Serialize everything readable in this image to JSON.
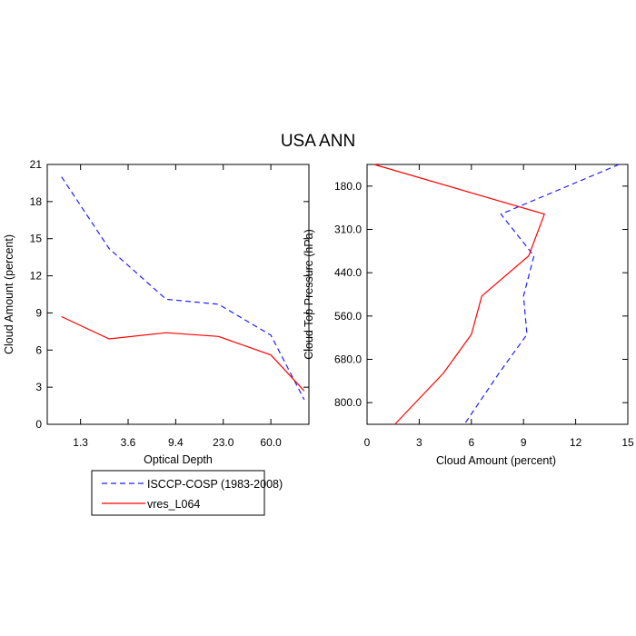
{
  "title": "USA ANN",
  "legend": {
    "entries": [
      {
        "label": "ISCCP-COSP (1983-2008)",
        "color": "#1f1fff",
        "dash": true
      },
      {
        "label": "vres_L064",
        "color": "#ff0000",
        "dash": false
      }
    ]
  },
  "chart_data": [
    {
      "type": "line",
      "xlabel": "Optical Depth",
      "ylabel": "Cloud Amount (percent)",
      "xtick_labels": [
        "1.3",
        "3.6",
        "9.4",
        "23.0",
        "60.0"
      ],
      "yticks": [
        0,
        3,
        6,
        9,
        12,
        15,
        18,
        21
      ],
      "ylim": [
        0,
        21
      ],
      "series": [
        {
          "name": "ISCCP-COSP (1983-2008)",
          "color": "#1f1fff",
          "dash": true,
          "x": [
            0.3,
            1.3,
            2.5,
            3.6,
            4.7,
            5.4
          ],
          "y": [
            20.0,
            14.2,
            10.1,
            9.7,
            7.2,
            2.0
          ]
        },
        {
          "name": "vres_L064",
          "color": "#ff0000",
          "dash": false,
          "x": [
            0.3,
            1.3,
            2.5,
            3.6,
            4.7,
            5.4
          ],
          "y": [
            8.7,
            6.9,
            7.4,
            7.1,
            5.6,
            2.7
          ]
        }
      ]
    },
    {
      "type": "line",
      "xlabel": "Cloud Amount (percent)",
      "ylabel": "Cloud Top Pressure (hPa)",
      "xticks": [
        0,
        3,
        6,
        9,
        12,
        15
      ],
      "xlim": [
        0,
        15
      ],
      "ytick_labels": [
        "180.0",
        "310.0",
        "440.0",
        "560.0",
        "680.0",
        "800.0"
      ],
      "series": [
        {
          "name": "ISCCP-COSP (1983-2008)",
          "color": "#1f1fff",
          "dash": true,
          "pressure": [
            90,
            245,
            375,
            500,
            620,
            740,
            900
          ],
          "cloud_amount": [
            14.5,
            7.7,
            9.6,
            9.0,
            9.2,
            7.6,
            5.6
          ]
        },
        {
          "name": "vres_L064",
          "color": "#ff0000",
          "dash": false,
          "pressure": [
            90,
            245,
            375,
            500,
            620,
            740,
            900
          ],
          "cloud_amount": [
            0.4,
            10.2,
            9.3,
            6.6,
            6.0,
            4.4,
            1.6
          ]
        }
      ]
    }
  ]
}
